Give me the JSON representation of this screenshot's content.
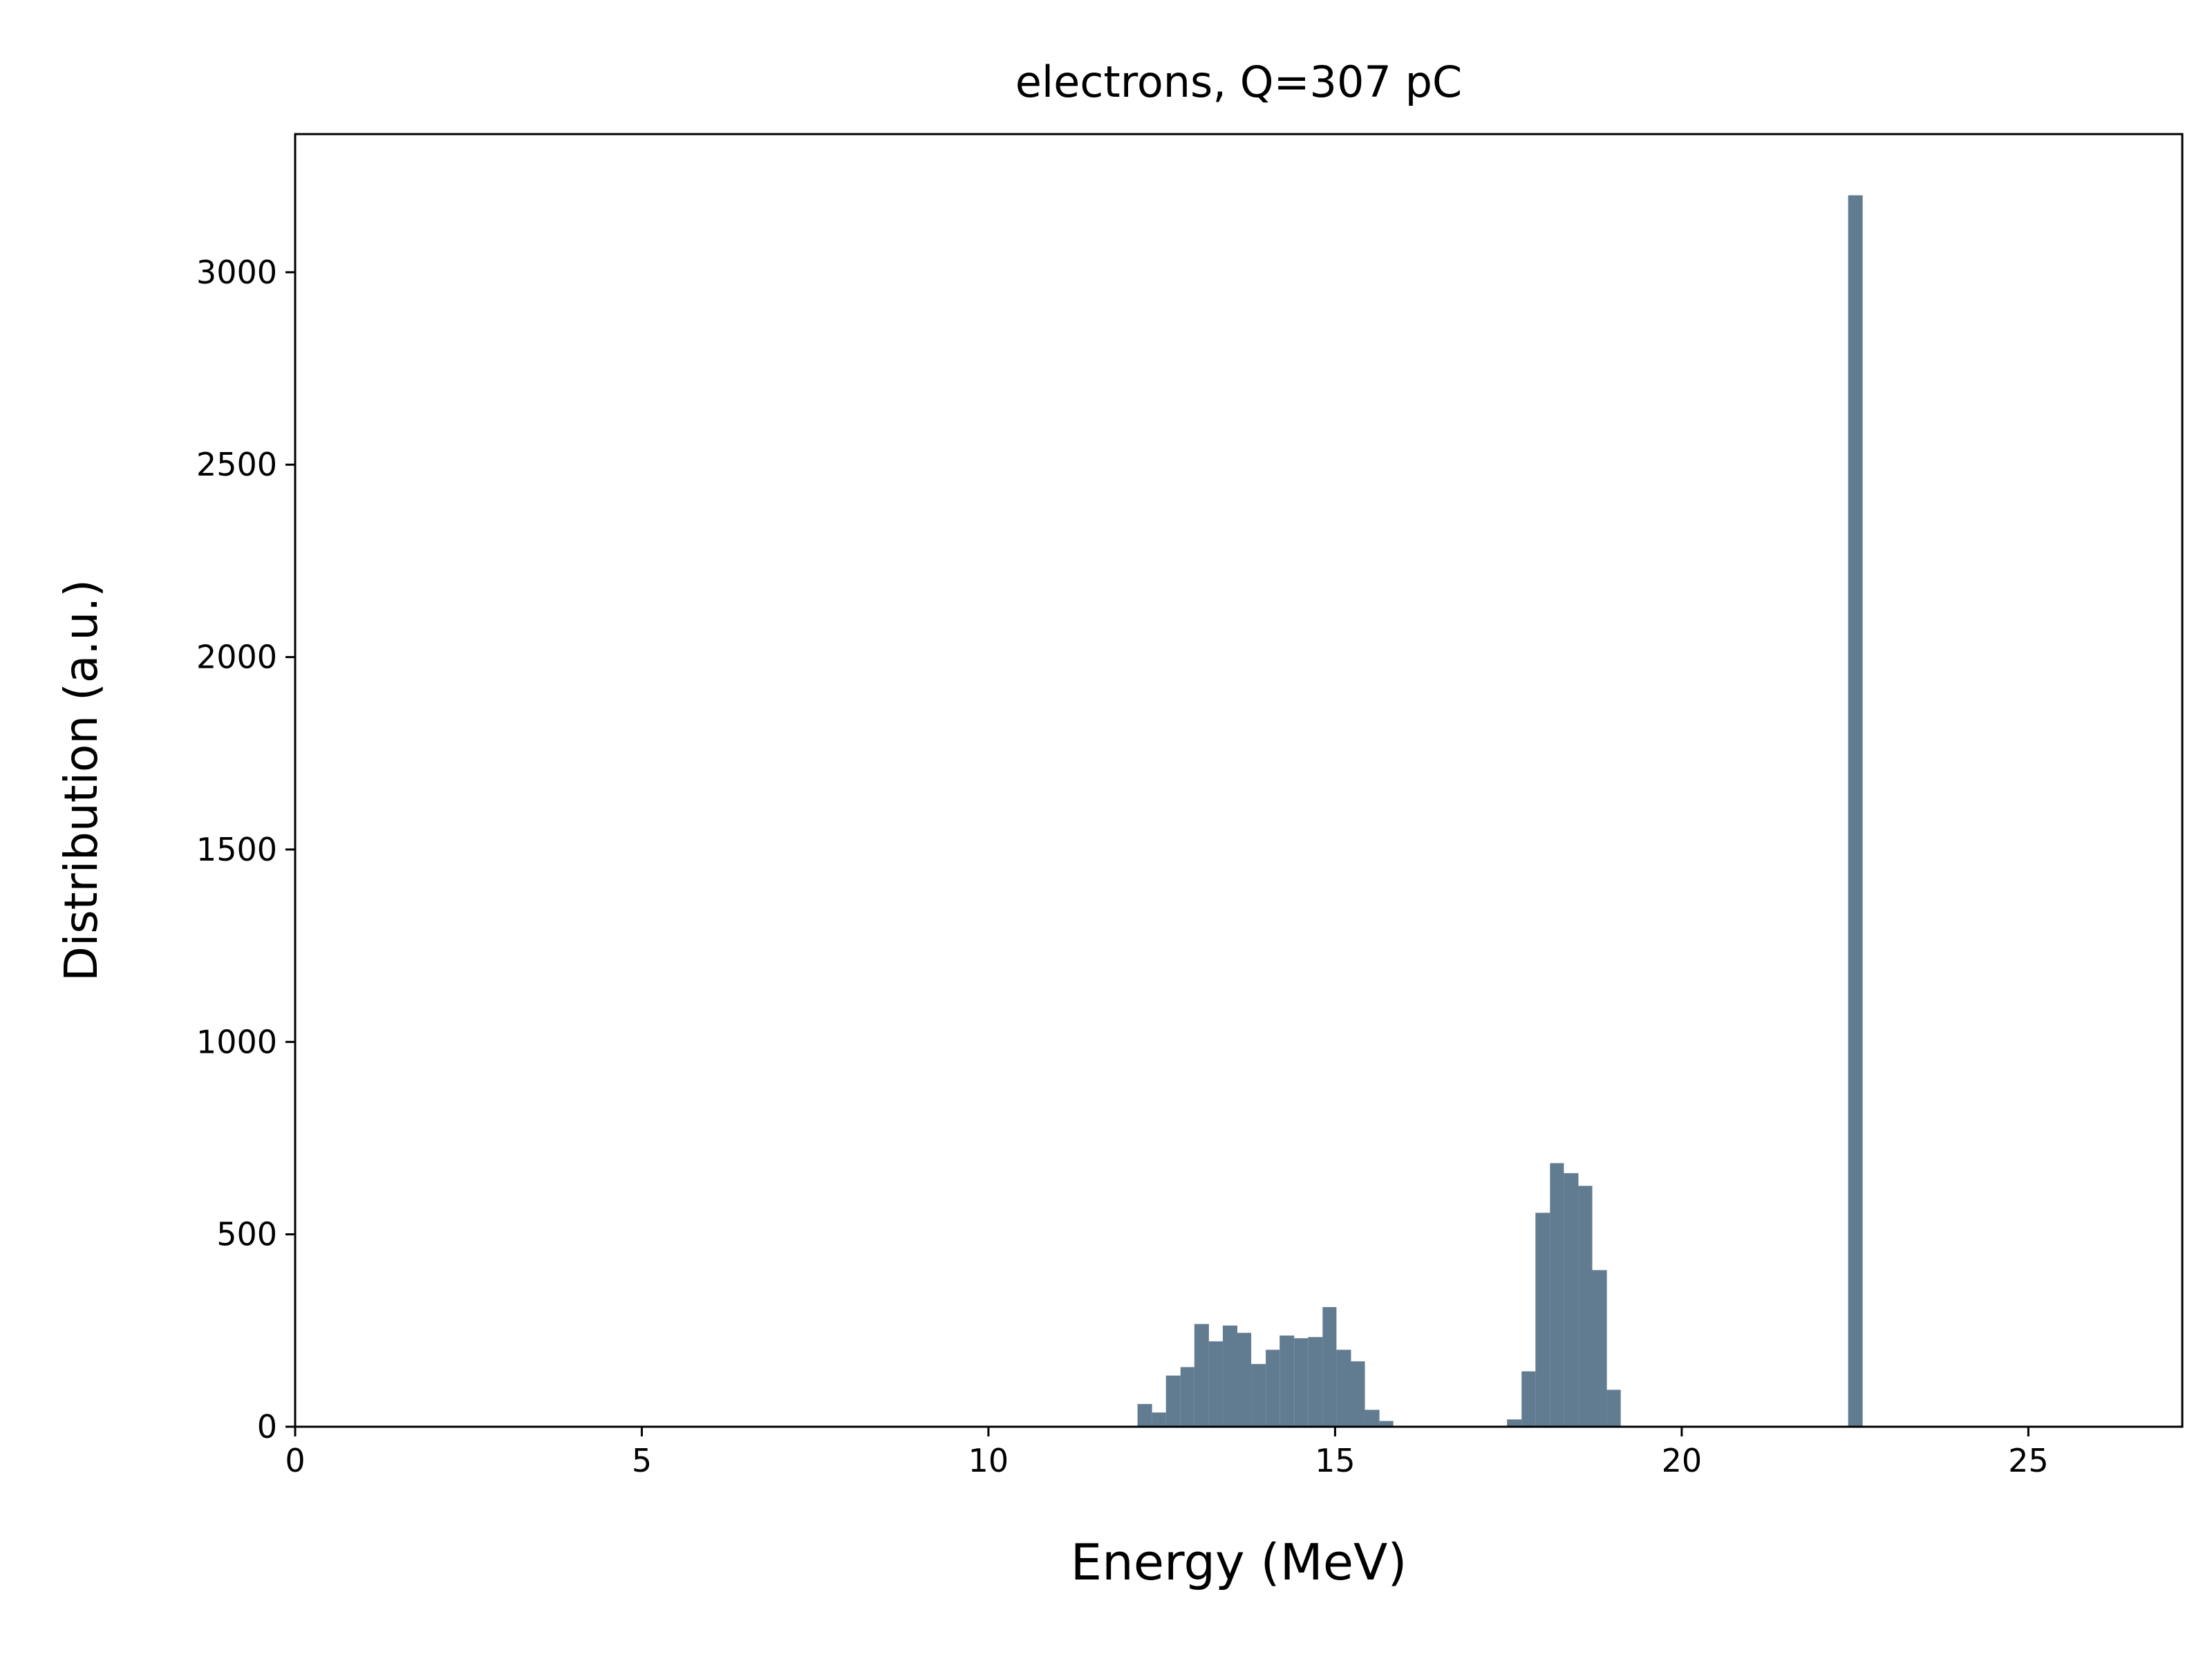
{
  "chart_data": {
    "type": "histogram",
    "title": "electrons, Q=307 pC",
    "xlabel": "Energy (MeV)",
    "ylabel": "Distribution (a.u.)",
    "color": "#617c91",
    "bins": [
      12.15,
      12.36,
      12.56,
      12.77,
      12.97,
      13.18,
      13.38,
      13.59,
      13.79,
      14.0,
      14.2,
      14.41,
      14.61,
      14.82,
      15.02,
      15.23,
      15.43,
      15.64,
      15.84,
      16.05,
      16.25,
      16.46,
      16.66,
      16.87,
      17.07,
      17.28,
      17.48,
      17.69,
      17.89,
      18.1,
      18.3,
      18.51,
      18.71,
      18.92,
      19.12,
      19.33,
      19.53,
      19.74,
      19.94,
      20.15,
      20.35,
      20.56,
      20.76,
      20.97,
      21.17,
      21.38,
      21.58,
      21.79,
      21.99,
      22.2,
      22.4,
      22.61
    ],
    "values": [
      59,
      37,
      133,
      155,
      267,
      222,
      263,
      244,
      163,
      200,
      237,
      230,
      233,
      311,
      200,
      170,
      44,
      15,
      0,
      0,
      0,
      0,
      0,
      0,
      0,
      0,
      19,
      144,
      556,
      685,
      659,
      626,
      407,
      96,
      0,
      0,
      0,
      0,
      0,
      0,
      0,
      0,
      0,
      0,
      0,
      0,
      0,
      0,
      0,
      0,
      3200
    ],
    "xlim": [
      0,
      27.22
    ],
    "ylim": [
      0,
      3359
    ],
    "xticks": [
      0,
      5,
      10,
      15,
      20,
      25
    ],
    "yticks": [
      0,
      500,
      1000,
      1500,
      2000,
      2500,
      3000
    ]
  }
}
